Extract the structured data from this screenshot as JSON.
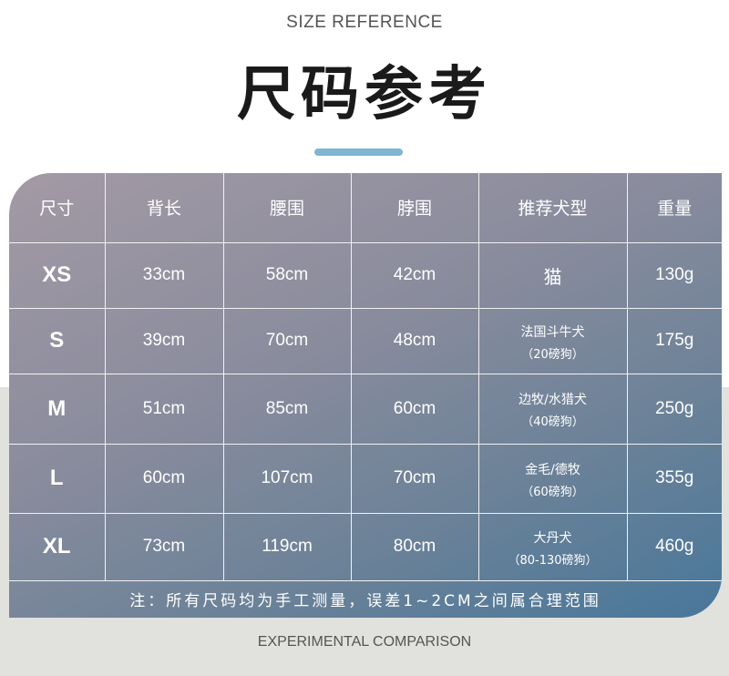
{
  "subtitle": "SIZE REFERENCE",
  "title": "尺码参考",
  "accent_color": "#80b5d3",
  "table": {
    "headers": [
      "尺寸",
      "背长",
      "腰围",
      "脖围",
      "推荐犬型",
      "重量"
    ],
    "rows": [
      {
        "size": "XS",
        "back": "33cm",
        "waist": "58cm",
        "neck": "42cm",
        "breed": "猫",
        "breed_note": "",
        "weight": "130g"
      },
      {
        "size": "S",
        "back": "39cm",
        "waist": "70cm",
        "neck": "48cm",
        "breed": "法国斗牛犬",
        "breed_note": "（20磅狗）",
        "weight": "175g"
      },
      {
        "size": "M",
        "back": "51cm",
        "waist": "85cm",
        "neck": "60cm",
        "breed": "边牧/水猎犬",
        "breed_note": "（40磅狗）",
        "weight": "250g"
      },
      {
        "size": "L",
        "back": "60cm",
        "waist": "107cm",
        "neck": "70cm",
        "breed": "金毛/德牧",
        "breed_note": "（60磅狗）",
        "weight": "355g"
      },
      {
        "size": "XL",
        "back": "73cm",
        "waist": "119cm",
        "neck": "80cm",
        "breed": "大丹犬",
        "breed_note": "（80-130磅狗）",
        "weight": "460g"
      }
    ],
    "note": "注：所有尺码均为手工测量，误差1~2CM之间属合理范围"
  },
  "footer": "EXPERIMENTAL COMPARISON"
}
